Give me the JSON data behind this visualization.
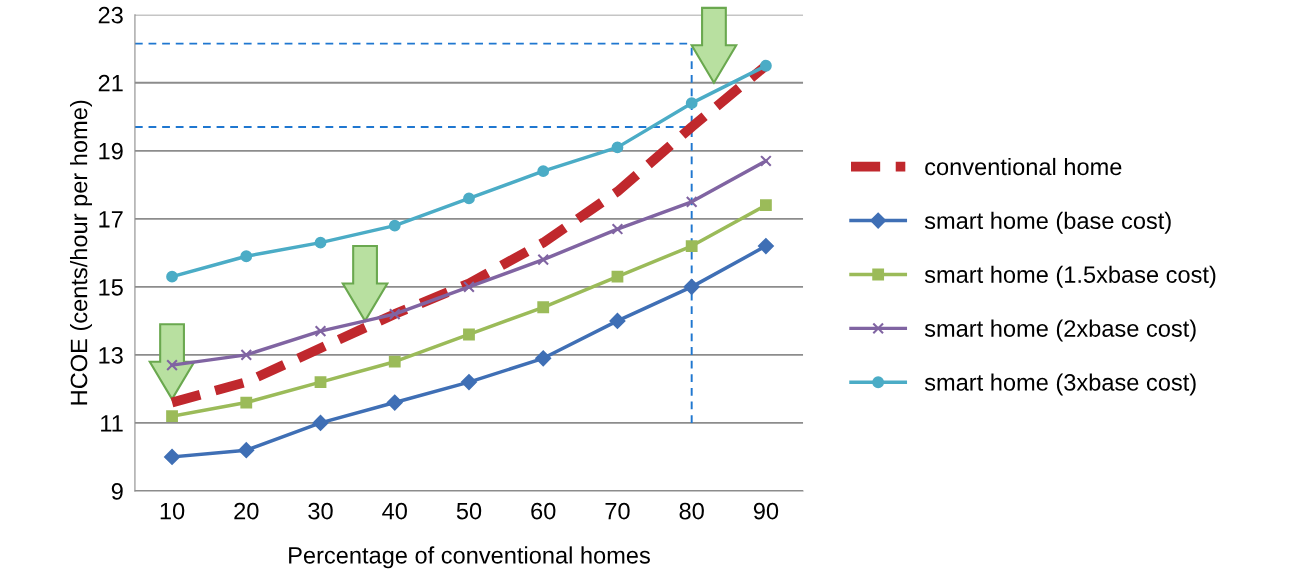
{
  "chart_data": {
    "type": "line",
    "xlabel": "Percentage of conventional homes",
    "ylabel": "HCOE (cents/hour per home)",
    "x": [
      10,
      20,
      30,
      40,
      50,
      60,
      70,
      80,
      90
    ],
    "xlim": [
      5,
      95
    ],
    "xticks": [
      10,
      20,
      30,
      40,
      50,
      60,
      70,
      80,
      90
    ],
    "ylim": [
      9,
      23
    ],
    "yticks": [
      9,
      11,
      13,
      15,
      17,
      19,
      21,
      23
    ],
    "grid": "y",
    "legend": "right",
    "series": [
      {
        "name": "conventional home",
        "color": "#c0282d",
        "marker": "none",
        "line_style": "dashed",
        "values": [
          11.6,
          12.2,
          13.2,
          14.2,
          15.1,
          16.3,
          17.8,
          19.7,
          21.5
        ]
      },
      {
        "name": "smart home (base cost)",
        "color": "#3f6fb5",
        "marker": "diamond",
        "line_style": "solid",
        "values": [
          10.0,
          10.2,
          11.0,
          11.6,
          12.2,
          12.9,
          14.0,
          15.0,
          16.2
        ]
      },
      {
        "name": "smart home (1.5xbase cost)",
        "color": "#9bbb59",
        "marker": "square",
        "line_style": "solid",
        "values": [
          11.2,
          11.6,
          12.2,
          12.8,
          13.6,
          14.4,
          15.3,
          16.2,
          17.4
        ]
      },
      {
        "name": "smart home (2xbase cost)",
        "color": "#8064a2",
        "marker": "cross",
        "line_style": "solid",
        "values": [
          12.7,
          13.0,
          13.7,
          14.2,
          15.0,
          15.8,
          16.7,
          17.5,
          18.7
        ]
      },
      {
        "name": "smart home (3xbase cost)",
        "color": "#4bacc6",
        "marker": "circle",
        "line_style": "solid",
        "values": [
          15.3,
          15.9,
          16.3,
          16.8,
          17.6,
          18.4,
          19.1,
          20.4,
          21.5
        ]
      }
    ],
    "ref_lines": [
      {
        "axis": "y",
        "value": 22.15,
        "color": "#1f77d0",
        "line_style": "dashed"
      },
      {
        "axis": "y",
        "value": 19.7,
        "color": "#1f77d0",
        "line_style": "dashed"
      },
      {
        "axis": "x",
        "value": 80,
        "color": "#1f77d0",
        "line_style": "dashed"
      }
    ]
  }
}
